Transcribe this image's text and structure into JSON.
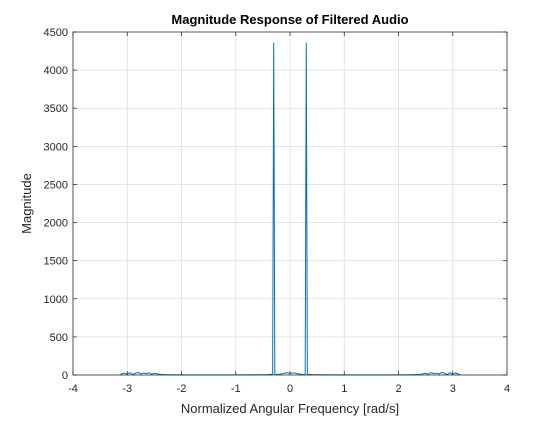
{
  "chart_data": {
    "type": "line",
    "title": "Magnitude Response of Filtered Audio",
    "xlabel": "Normalized Angular Frequency [rad/s]",
    "ylabel": "Magnitude",
    "xlim": [
      -4,
      4
    ],
    "ylim": [
      0,
      4500
    ],
    "xticks": [
      -4,
      -3,
      -2,
      -1,
      0,
      1,
      2,
      3,
      4
    ],
    "yticks": [
      0,
      500,
      1000,
      1500,
      2000,
      2500,
      3000,
      3500,
      4000,
      4500
    ],
    "xtick_labels": [
      "-4",
      "-3",
      "-2",
      "-1",
      "0",
      "1",
      "2",
      "3",
      "4"
    ],
    "ytick_labels": [
      "0",
      "500",
      "1000",
      "1500",
      "2000",
      "2500",
      "3000",
      "3500",
      "4000",
      "4500"
    ],
    "grid": true,
    "series": [
      {
        "color": "#0072BD",
        "x": [
          -3.14159,
          -3.1,
          -3.05,
          -3.0,
          -2.95,
          -2.9,
          -2.85,
          -2.8,
          -2.75,
          -2.7,
          -2.65,
          -2.6,
          -2.55,
          -2.5,
          -2.45,
          -2.4,
          -2.3,
          -2.2,
          -2.0,
          -1.5,
          -1.0,
          -0.6,
          -0.4,
          -0.32,
          -0.3,
          -0.28,
          -0.25,
          -0.15,
          -0.1,
          -0.05,
          0.0,
          0.05,
          0.1,
          0.15,
          0.25,
          0.28,
          0.3,
          0.32,
          0.4,
          0.6,
          1.0,
          1.5,
          2.0,
          2.2,
          2.3,
          2.4,
          2.45,
          2.5,
          2.55,
          2.6,
          2.65,
          2.7,
          2.75,
          2.8,
          2.85,
          2.9,
          2.95,
          3.0,
          3.05,
          3.1,
          3.14159
        ],
        "y": [
          0,
          15,
          25,
          10,
          30,
          8,
          20,
          35,
          12,
          25,
          18,
          30,
          10,
          22,
          15,
          8,
          5,
          3,
          2,
          1,
          2,
          3,
          5,
          10,
          4360,
          10,
          5,
          15,
          25,
          30,
          20,
          30,
          25,
          15,
          5,
          10,
          4360,
          10,
          5,
          3,
          2,
          1,
          2,
          3,
          5,
          8,
          15,
          22,
          10,
          30,
          18,
          25,
          12,
          35,
          20,
          8,
          30,
          10,
          25,
          15,
          0
        ]
      }
    ]
  }
}
